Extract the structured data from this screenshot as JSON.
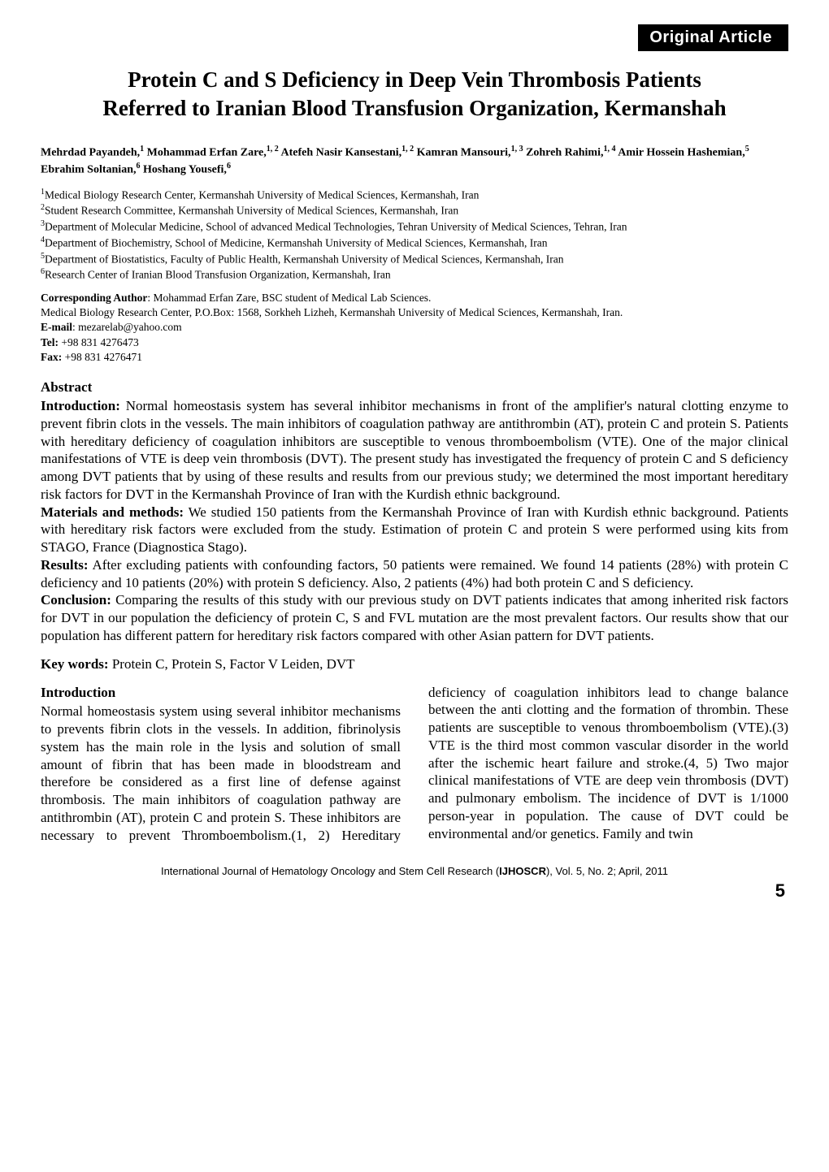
{
  "header_bar": "Original Article",
  "title": "Protein C and S Deficiency in Deep Vein Thrombosis Patients Referred to Iranian Blood Transfusion Organization, Kermanshah",
  "authors_html": "Mehrdad Payandeh,<sup>1</sup> Mohammad Erfan Zare,<sup>1, 2</sup> Atefeh Nasir Kansestani,<sup>1, 2</sup> Kamran Mansouri,<sup>1, 3</sup> Zohreh Rahimi,<sup>1, 4</sup> Amir Hossein Hashemian,<sup>5</sup> Ebrahim Soltanian,<sup>6</sup> Hoshang Yousefi,<sup>6</sup>",
  "affiliations": [
    "1Medical Biology Research Center, Kermanshah University of Medical Sciences, Kermanshah, Iran",
    "2Student Research Committee, Kermanshah University of Medical Sciences, Kermanshah, Iran",
    "3Department of Molecular Medicine, School of advanced Medical Technologies, Tehran University of Medical Sciences, Tehran, Iran",
    "4Department of Biochemistry, School of Medicine, Kermanshah University of Medical Sciences, Kermanshah, Iran",
    "5Department of Biostatistics, Faculty of Public Health, Kermanshah University of Medical Sciences, Kermanshah, Iran",
    "6Research Center of Iranian Blood Transfusion Organization, Kermanshah, Iran"
  ],
  "corresponding": {
    "label": "Corresponding Author",
    "name_line": ": Mohammad Erfan Zare, BSC student of Medical Lab Sciences.",
    "address": "Medical Biology Research Center, P.O.Box: 1568, Sorkheh Lizheh, Kermanshah University of Medical Sciences, Kermanshah, Iran.",
    "email_label": "E-mail",
    "email": ": mezarelab@yahoo.com",
    "tel_label": "Tel:",
    "tel": " +98 831 4276473",
    "fax_label": "Fax:",
    "fax": " +98 831 4276471"
  },
  "abstract_heading": "Abstract",
  "abstract": {
    "intro_label": "Introduction:",
    "intro": " Normal homeostasis system has several inhibitor mechanisms in front of the amplifier's natural clotting enzyme to prevent fibrin clots in the vessels. The main inhibitors of coagulation pathway are antithrombin (AT), protein C and protein S. Patients with hereditary deficiency of coagulation inhibitors are susceptible to venous thromboembolism (VTE). One of the major clinical manifestations of VTE is deep vein thrombosis (DVT). The present study has investigated the frequency of protein C and S deficiency among DVT patients that by using of these results and results from our previous study; we determined the most important hereditary risk factors for DVT in the Kermanshah Province of Iran with the Kurdish ethnic background.",
    "methods_label": "Materials and methods:",
    "methods": " We studied 150 patients from the Kermanshah Province of Iran with Kurdish ethnic background. Patients with hereditary risk factors were excluded from the study. Estimation of protein C and protein S were performed using kits from STAGO, France (Diagnostica Stago).",
    "results_label": "Results:",
    "results": " After excluding patients with confounding factors, 50 patients were remained. We found 14 patients (28%) with protein C deficiency and 10 patients (20%) with protein S deficiency. Also, 2 patients (4%) had both protein C and S deficiency.",
    "conclusion_label": "Conclusion:",
    "conclusion": " Comparing the results of this study with our previous study on DVT patients indicates that among inherited risk factors for DVT in our population the deficiency of protein C, S and FVL mutation are the most prevalent factors. Our results show that our population has different pattern for hereditary risk factors compared with other Asian pattern for DVT patients."
  },
  "keywords_label": "Key words:",
  "keywords": " Protein C, Protein S, Factor V Leiden, DVT",
  "intro_heading": "Introduction",
  "intro_body": "Normal homeostasis system using several inhibitor mechanisms to prevents fibrin clots in the vessels. In addition, fibrinolysis system has the main role in the lysis and solution of small amount of fibrin that has been made in bloodstream and therefore be considered as a first line of defense against thrombosis. The main inhibitors of coagulation pathway are antithrombin (AT), protein C and protein S. These inhibitors are necessary to prevent Thromboembolism.(1, 2) Hereditary deficiency of coagulation inhibitors lead to change balance between the anti clotting and the formation of thrombin. These patients are susceptible to venous thromboembolism (VTE).(3) VTE is the third most common vascular disorder in the world after the ischemic heart failure and stroke.(4, 5) Two major clinical manifestations of VTE are deep vein thrombosis (DVT) and pulmonary embolism. The incidence of DVT is 1/1000 person-year in population. The cause of DVT could be environmental and/or genetics. Family and twin",
  "footer_text_pre": "International Journal of Hematology Oncology and Stem Cell Research (",
  "footer_jname": "IJHOSCR",
  "footer_text_post": "), Vol. 5, No. 2; April, 2011",
  "page_number": "5"
}
